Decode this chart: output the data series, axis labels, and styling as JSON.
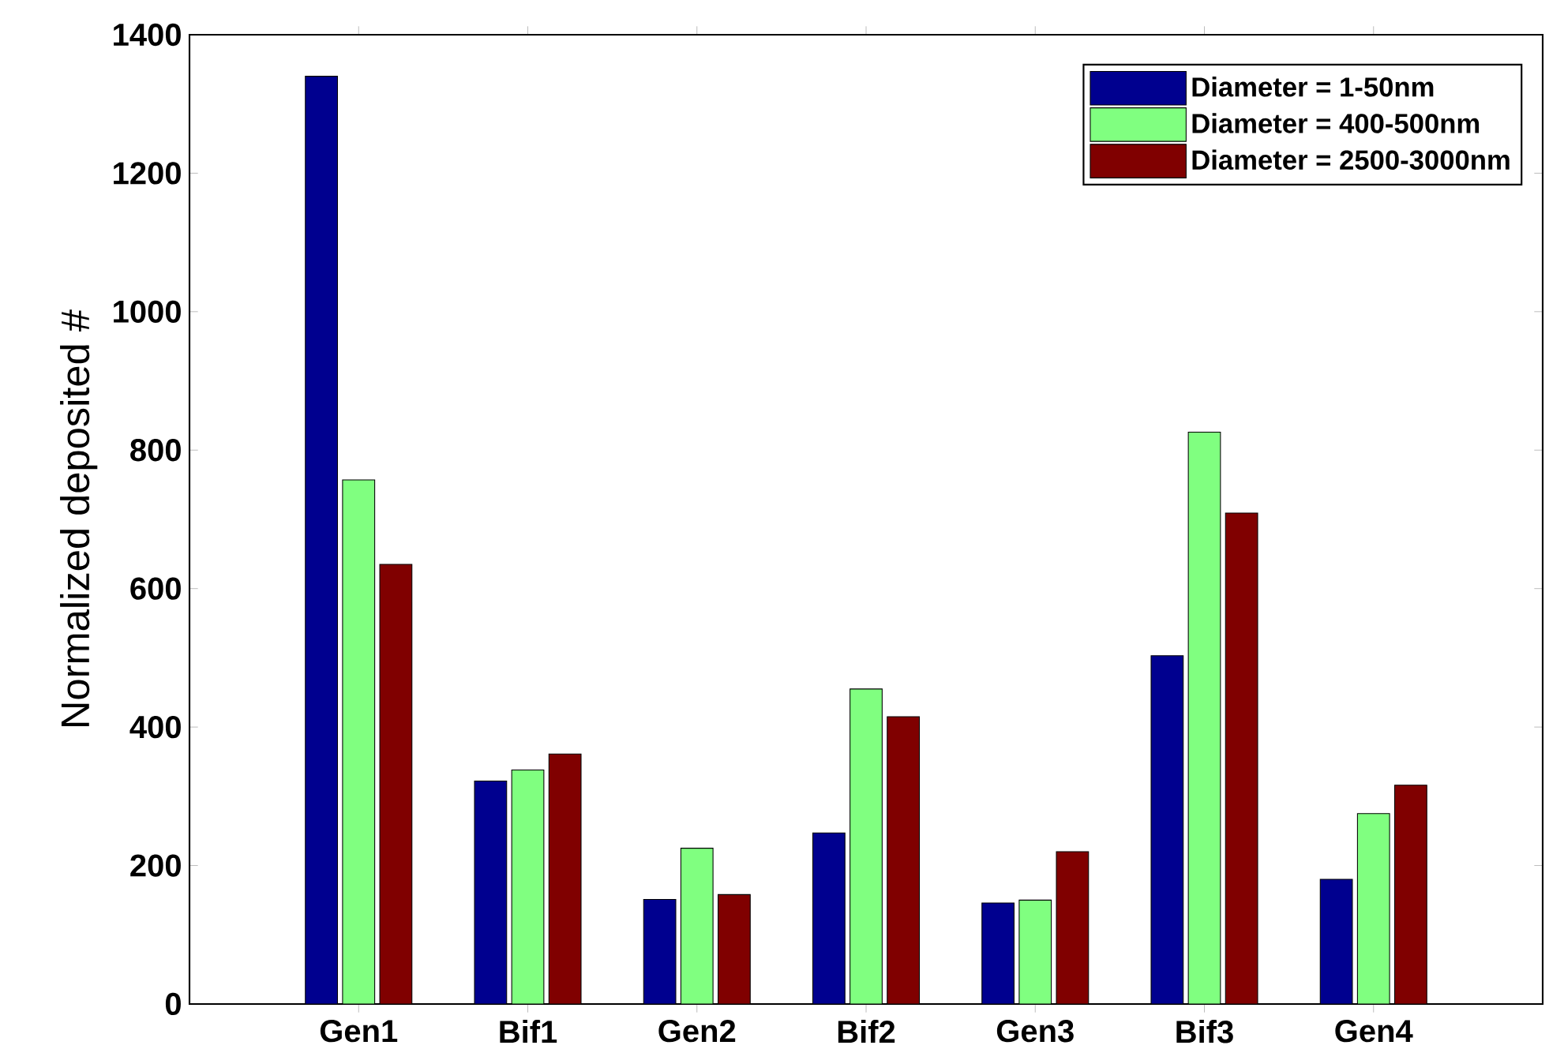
{
  "chart_data": {
    "type": "bar",
    "ylabel": "Normalized deposited #",
    "categories": [
      "Gen1",
      "Bif1",
      "Gen2",
      "Bif2",
      "Gen3",
      "Bif3",
      "Gen4"
    ],
    "series": [
      {
        "name": "Diameter = 1-50nm",
        "color": "#00008f",
        "values": [
          1340,
          322,
          151,
          247,
          146,
          503,
          180
        ]
      },
      {
        "name": "Diameter = 400-500nm",
        "color": "#80ff80",
        "values": [
          757,
          338,
          225,
          455,
          150,
          826,
          275
        ]
      },
      {
        "name": "Diameter = 2500-3000nm",
        "color": "#800000",
        "values": [
          635,
          361,
          158,
          415,
          220,
          709,
          316
        ]
      }
    ],
    "ylim": [
      0,
      1400
    ],
    "yticks": [
      0,
      200,
      400,
      600,
      800,
      1000,
      1200,
      1400
    ],
    "grid": false,
    "legend": "top right"
  }
}
